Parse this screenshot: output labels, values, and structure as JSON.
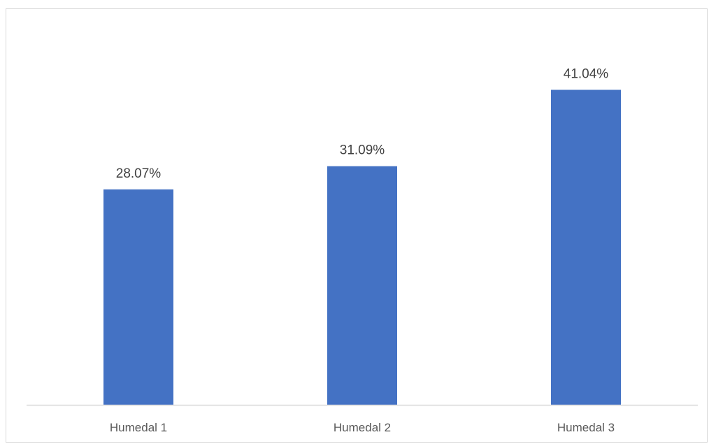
{
  "chart_data": {
    "type": "bar",
    "title": "",
    "xlabel": "",
    "ylabel": "",
    "categories": [
      "Humedal 1",
      "Humedal 2",
      "Humedal 3"
    ],
    "values": [
      28.07,
      31.09,
      41.04
    ],
    "data_labels": [
      "28.07%",
      "31.09%",
      "41.04%"
    ],
    "unit": "%",
    "ylim": [
      0,
      45
    ],
    "grid": false,
    "legend": "none",
    "bar_color": "#4472C4",
    "axis_color": "#D9D9D9"
  }
}
